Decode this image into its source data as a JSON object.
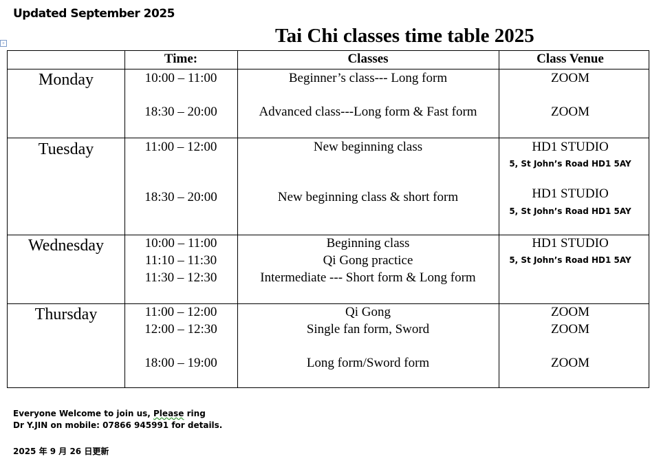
{
  "updated": "Updated September 2025",
  "title": "Tai Chi classes time table 2025",
  "headers": [
    "",
    "Time:",
    "Classes",
    "Class Venue"
  ],
  "rows": [
    {
      "day": "Monday",
      "times": [
        "10:00 – 11:00",
        "18:30 – 20:00"
      ],
      "classes": [
        "Beginner’s class--- Long form",
        "Advanced class---Long form & Fast form"
      ],
      "venues": [
        "ZOOM",
        "ZOOM"
      ]
    },
    {
      "day": "Tuesday",
      "times": [
        "11:00 – 12:00",
        "18:30 – 20:00"
      ],
      "classes": [
        "New beginning class",
        "New beginning class & short form"
      ],
      "venues": [
        "HD1 STUDIO",
        "5, St John’s Road HD1 5AY",
        "HD1 STUDIO",
        "5, St John’s Road HD1 5AY"
      ]
    },
    {
      "day": "Wednesday",
      "times": [
        "10:00 – 11:00",
        "11:10 – 11:30",
        "11:30 – 12:30"
      ],
      "classes": [
        "Beginning class",
        "Qi Gong practice",
        "Intermediate --- Short form & Long form"
      ],
      "venues": [
        "HD1 STUDIO",
        "5, St John’s Road HD1 5AY"
      ]
    },
    {
      "day": "Thursday",
      "times": [
        "11:00 – 12:00",
        "12:00 – 12:30",
        "18:00 – 19:00"
      ],
      "classes": [
        "Qi Gong",
        "Single fan form, Sword",
        "Long form/Sword form"
      ],
      "venues": [
        "ZOOM",
        "ZOOM",
        "ZOOM"
      ]
    }
  ],
  "footer": {
    "line1_a": "Everyone Welcome to join us, ",
    "line1_b": "Please",
    "line1_c": " ring",
    "line2": "Dr Y.JIN on mobile: 07866  945991  for details.",
    "chinese_date": "2025 年 9 月 26 日更新"
  }
}
